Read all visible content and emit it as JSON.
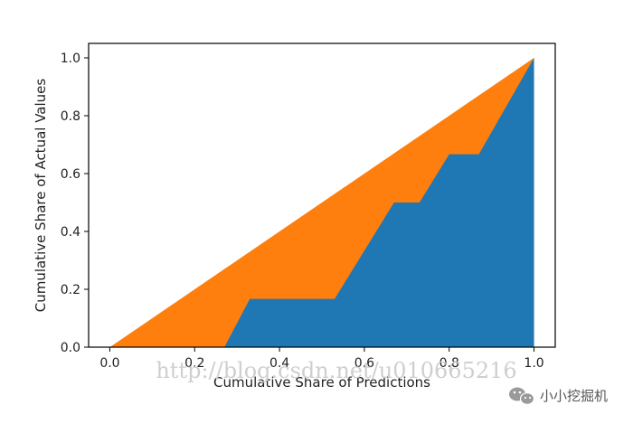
{
  "chart_data": {
    "type": "area",
    "title": "",
    "xlabel": "Cumulative Share of Predictions",
    "ylabel": "Cumulative Share of Actual Values",
    "xlim": [
      -0.05,
      1.05
    ],
    "ylim": [
      0.0,
      1.05
    ],
    "x_ticks": [
      "0.0",
      "0.2",
      "0.4",
      "0.6",
      "0.8",
      "1.0"
    ],
    "y_ticks": [
      "0.0",
      "0.2",
      "0.4",
      "0.6",
      "0.8",
      "1.0"
    ],
    "grid": false,
    "series": [
      {
        "color": "#ff7f0e",
        "x": [
          0.0,
          1.0
        ],
        "y": [
          0.0,
          1.0
        ]
      },
      {
        "color": "#1f77b4",
        "x": [
          0.0,
          0.27,
          0.33,
          0.53,
          0.67,
          0.73,
          0.8,
          0.87,
          1.0
        ],
        "y": [
          0.0,
          0.0,
          0.1667,
          0.1667,
          0.5,
          0.5,
          0.6667,
          0.6667,
          1.0
        ]
      }
    ]
  },
  "watermark": "http://blog.csdn.net/u010665216",
  "brand": {
    "name": "小小挖掘机",
    "icon": "wechat-icon"
  }
}
